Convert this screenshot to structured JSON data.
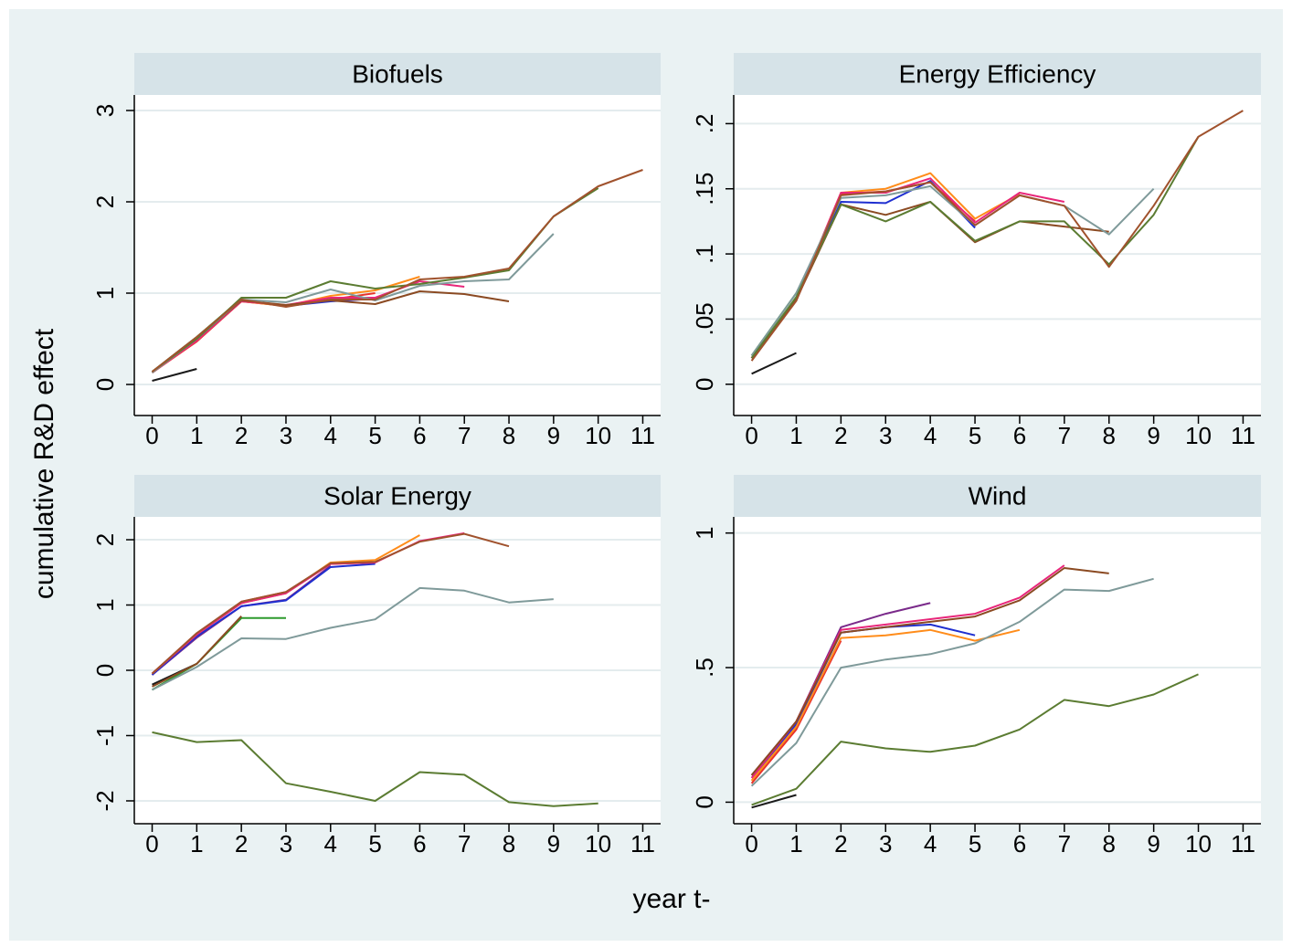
{
  "y_label": "cumulative R&D effect",
  "x_label": "year t-",
  "chart_data": [
    {
      "type": "line",
      "title": "Biofuels",
      "x": [
        0,
        1,
        2,
        3,
        4,
        5,
        6,
        7,
        8,
        9,
        10,
        11
      ],
      "xlim": [
        -0.4,
        11.4
      ],
      "xticks": [
        0,
        1,
        2,
        3,
        4,
        5,
        6,
        7,
        8,
        9,
        10,
        11
      ],
      "ylim": [
        -0.34,
        3.17
      ],
      "yticks": [
        0,
        1,
        2,
        3
      ],
      "grid": true,
      "series": [
        {
          "color": "#1a1a1a",
          "values": [
            0.04,
            0.17,
            null,
            null,
            null,
            null,
            null,
            null,
            null,
            null,
            null,
            null
          ]
        },
        {
          "color": "#2e9a2e",
          "values": [
            0.14,
            0.52,
            0.94,
            null,
            null,
            null,
            null,
            null,
            null,
            null,
            null,
            null
          ]
        },
        {
          "color": "#1f2fd0",
          "values": [
            0.13,
            0.48,
            0.92,
            0.86,
            0.91,
            0.94,
            null,
            null,
            null,
            null,
            null,
            null
          ]
        },
        {
          "color": "#e8322a",
          "values": [
            0.13,
            0.47,
            0.91,
            0.86,
            0.93,
            1.0,
            null,
            null,
            null,
            null,
            null,
            null
          ]
        },
        {
          "color": "#ff8c1a",
          "values": [
            0.13,
            0.48,
            0.91,
            0.86,
            0.97,
            1.03,
            1.18,
            null,
            null,
            null,
            null,
            null
          ]
        },
        {
          "color": "#e8267a",
          "values": [
            0.13,
            0.48,
            0.91,
            0.87,
            0.95,
            0.95,
            1.13,
            1.07,
            null,
            null,
            null,
            null
          ]
        },
        {
          "color": "#8b4a22",
          "values": [
            0.13,
            0.5,
            0.92,
            0.87,
            0.92,
            0.88,
            1.02,
            0.99,
            0.91,
            null,
            null,
            null
          ]
        },
        {
          "color": "#7f9a9a",
          "values": [
            0.13,
            0.5,
            0.93,
            0.9,
            1.04,
            0.92,
            1.08,
            1.13,
            1.15,
            1.65,
            null,
            null
          ]
        },
        {
          "color": "#5b7c32",
          "values": [
            0.14,
            0.5,
            0.95,
            0.95,
            1.13,
            1.05,
            1.1,
            1.17,
            1.25,
            1.84,
            2.15,
            null
          ]
        },
        {
          "color": "#a0522d",
          "values": [
            0.14,
            0.52,
            0.93,
            0.85,
            0.93,
            0.93,
            1.15,
            1.18,
            1.27,
            1.84,
            2.17,
            2.35
          ]
        }
      ]
    },
    {
      "type": "line",
      "title": "Energy Efficiency",
      "x": [
        0,
        1,
        2,
        3,
        4,
        5,
        6,
        7,
        8,
        9,
        10,
        11
      ],
      "xlim": [
        -0.4,
        11.4
      ],
      "xticks": [
        0,
        1,
        2,
        3,
        4,
        5,
        6,
        7,
        8,
        9,
        10,
        11
      ],
      "ylim": [
        -0.024,
        0.222
      ],
      "yticks": [
        {
          "value": 0,
          "label": "0"
        },
        {
          "value": 0.05,
          "label": ".05"
        },
        {
          "value": 0.1,
          "label": ".1"
        },
        {
          "value": 0.15,
          "label": ".15"
        },
        {
          "value": 0.2,
          "label": ".2"
        }
      ],
      "grid": true,
      "series": [
        {
          "color": "#1a1a1a",
          "values": [
            0.008,
            0.024,
            null,
            null,
            null,
            null,
            null,
            null,
            null,
            null,
            null,
            null
          ]
        },
        {
          "color": "#2e9a2e",
          "values": [
            0.022,
            0.07,
            0.14,
            null,
            null,
            null,
            null,
            null,
            null,
            null,
            null,
            null
          ]
        },
        {
          "color": "#1f2fd0",
          "values": [
            0.02,
            0.065,
            0.14,
            0.139,
            0.156,
            0.12,
            null,
            null,
            null,
            null,
            null,
            null
          ]
        },
        {
          "color": "#e8322a",
          "values": [
            0.02,
            0.065,
            0.146,
            0.148,
            0.155,
            0.125,
            null,
            null,
            null,
            null,
            null,
            null
          ]
        },
        {
          "color": "#ff8c1a",
          "values": [
            0.02,
            0.065,
            0.147,
            0.15,
            0.162,
            0.127,
            0.146,
            null,
            null,
            null,
            null,
            null
          ]
        },
        {
          "color": "#e8267a",
          "values": [
            0.02,
            0.065,
            0.147,
            0.147,
            0.158,
            0.124,
            0.147,
            0.14,
            null,
            null,
            null,
            null
          ]
        },
        {
          "color": "#8b4a22",
          "values": [
            0.02,
            0.065,
            0.138,
            0.13,
            0.14,
            0.109,
            0.125,
            0.121,
            0.117,
            null,
            null,
            null
          ]
        },
        {
          "color": "#7f9a9a",
          "values": [
            0.022,
            0.07,
            0.143,
            0.145,
            0.152,
            0.122,
            0.145,
            0.137,
            0.115,
            0.15,
            null,
            null
          ]
        },
        {
          "color": "#5b7c32",
          "values": [
            0.02,
            0.067,
            0.138,
            0.125,
            0.14,
            0.11,
            0.125,
            0.125,
            0.092,
            0.13,
            0.19,
            null
          ]
        },
        {
          "color": "#a0522d",
          "values": [
            0.018,
            0.064,
            0.145,
            0.148,
            0.155,
            0.122,
            0.145,
            0.137,
            0.09,
            0.137,
            0.19,
            0.21
          ]
        }
      ]
    },
    {
      "type": "line",
      "title": "Solar Energy",
      "x": [
        0,
        1,
        2,
        3,
        4,
        5,
        6,
        7,
        8,
        9,
        10,
        11
      ],
      "xlim": [
        -0.4,
        11.4
      ],
      "xticks": [
        0,
        1,
        2,
        3,
        4,
        5,
        6,
        7,
        8,
        9,
        10,
        11
      ],
      "ylim": [
        -2.35,
        2.35
      ],
      "yticks": [
        -2,
        -1,
        0,
        1,
        2
      ],
      "grid": true,
      "series": [
        {
          "color": "#1a1a1a",
          "values": [
            -0.22,
            0.1,
            null,
            null,
            null,
            null,
            null,
            null,
            null,
            null,
            null,
            null
          ]
        },
        {
          "color": "#2e9a2e",
          "values": [
            -0.3,
            0.1,
            0.8,
            0.8,
            null,
            null,
            null,
            null,
            null,
            null,
            null,
            null
          ]
        },
        {
          "color": "#8b4a22",
          "values": [
            -0.25,
            0.1,
            0.83,
            null,
            null,
            null,
            null,
            null,
            null,
            null,
            null,
            null
          ]
        },
        {
          "color": "#7a2a8a",
          "values": [
            -0.07,
            0.5,
            0.98,
            1.08,
            1.6,
            null,
            null,
            null,
            null,
            null,
            null,
            null
          ]
        },
        {
          "color": "#1f2fd0",
          "values": [
            -0.07,
            0.52,
            0.98,
            1.07,
            1.58,
            1.63,
            null,
            null,
            null,
            null,
            null,
            null
          ]
        },
        {
          "color": "#e8322a",
          "values": [
            -0.05,
            0.55,
            1.05,
            1.2,
            1.63,
            1.65,
            null,
            null,
            null,
            null,
            null,
            null
          ]
        },
        {
          "color": "#ff8c1a",
          "values": [
            -0.05,
            0.55,
            1.03,
            1.18,
            1.65,
            1.69,
            2.07,
            null,
            null,
            null,
            null,
            null
          ]
        },
        {
          "color": "#e8267a",
          "values": [
            -0.05,
            0.55,
            1.03,
            1.18,
            1.63,
            1.65,
            1.98,
            2.1,
            null,
            null,
            null,
            null
          ]
        },
        {
          "color": "#a0522d",
          "values": [
            -0.05,
            0.57,
            1.05,
            1.2,
            1.64,
            1.66,
            1.97,
            2.09,
            1.9,
            null,
            null,
            null
          ]
        },
        {
          "color": "#7f9a9a",
          "values": [
            -0.3,
            0.05,
            0.49,
            0.48,
            0.65,
            0.78,
            1.26,
            1.22,
            1.04,
            1.09,
            null,
            null
          ]
        },
        {
          "color": "#5b7c32",
          "values": [
            -0.95,
            -1.1,
            -1.07,
            -1.73,
            -1.86,
            -2.0,
            -1.56,
            -1.6,
            -2.02,
            -2.08,
            -2.04,
            null
          ]
        }
      ]
    },
    {
      "type": "line",
      "title": "Wind",
      "x": [
        0,
        1,
        2,
        3,
        4,
        5,
        6,
        7,
        8,
        9,
        10,
        11
      ],
      "xlim": [
        -0.4,
        11.4
      ],
      "xticks": [
        0,
        1,
        2,
        3,
        4,
        5,
        6,
        7,
        8,
        9,
        10,
        11
      ],
      "ylim": [
        -0.08,
        1.06
      ],
      "yticks": [
        0,
        {
          "value": 0.5,
          "label": ".5"
        },
        1
      ],
      "grid": true,
      "series": [
        {
          "color": "#1a1a1a",
          "values": [
            -0.02,
            0.027,
            null,
            null,
            null,
            null,
            null,
            null,
            null,
            null,
            null,
            null
          ]
        },
        {
          "color": "#e8322a",
          "values": [
            0.07,
            0.27,
            0.6,
            null,
            null,
            null,
            null,
            null,
            null,
            null,
            null,
            null
          ]
        },
        {
          "color": "#7a2a8a",
          "values": [
            0.1,
            0.3,
            0.65,
            0.7,
            0.74,
            null,
            null,
            null,
            null,
            null,
            null,
            null
          ]
        },
        {
          "color": "#1f2fd0",
          "values": [
            0.09,
            0.29,
            0.63,
            0.65,
            0.66,
            0.62,
            null,
            null,
            null,
            null,
            null,
            null
          ]
        },
        {
          "color": "#ff8c1a",
          "values": [
            0.08,
            0.28,
            0.61,
            0.62,
            0.64,
            0.6,
            0.64,
            null,
            null,
            null,
            null,
            null
          ]
        },
        {
          "color": "#e8267a",
          "values": [
            0.09,
            0.3,
            0.64,
            0.66,
            0.68,
            0.7,
            0.76,
            0.88,
            null,
            null,
            null,
            null
          ]
        },
        {
          "color": "#8b4a22",
          "values": [
            0.1,
            0.3,
            0.63,
            0.65,
            0.67,
            0.69,
            0.75,
            0.87,
            0.85,
            null,
            null,
            null
          ]
        },
        {
          "color": "#7f9a9a",
          "values": [
            0.06,
            0.22,
            0.5,
            0.53,
            0.55,
            0.59,
            0.67,
            0.79,
            0.785,
            0.83,
            null,
            null
          ]
        },
        {
          "color": "#5b7c32",
          "values": [
            -0.01,
            0.05,
            0.225,
            0.2,
            0.187,
            0.21,
            0.27,
            0.38,
            0.357,
            0.4,
            0.475,
            null
          ]
        }
      ]
    }
  ]
}
